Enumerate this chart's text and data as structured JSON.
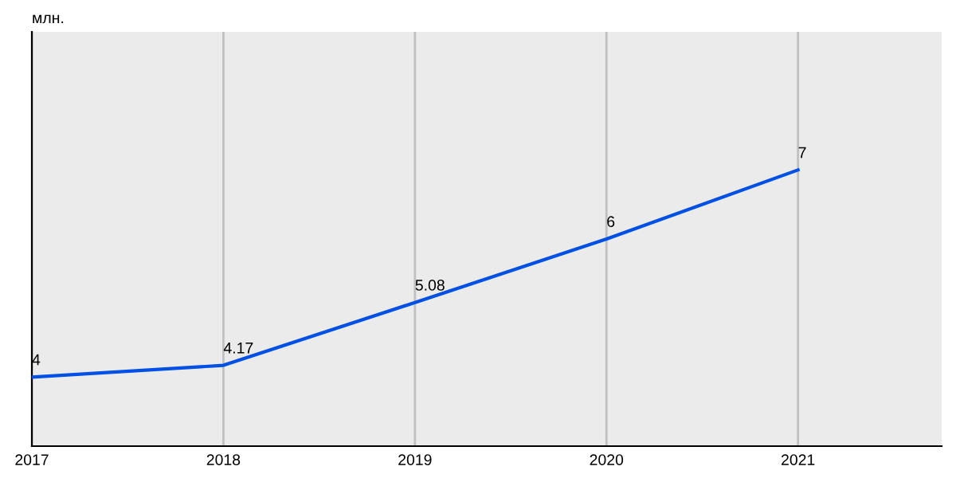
{
  "chart_data": {
    "type": "line",
    "ylabel": "млн.",
    "x": [
      2017,
      2018,
      2019,
      2020,
      2021
    ],
    "series": [
      {
        "color": "#0050e6",
        "values": [
          4,
          4.17,
          5.08,
          6,
          7
        ]
      }
    ],
    "xlim": [
      2017,
      2021.75
    ],
    "xticks": [
      2017,
      2018,
      2019,
      2020,
      2021
    ],
    "ylim": [
      3,
      9
    ],
    "grid": "x",
    "data_labels": true,
    "tick_labels": "x",
    "marker": "none",
    "line_style": "solid"
  }
}
